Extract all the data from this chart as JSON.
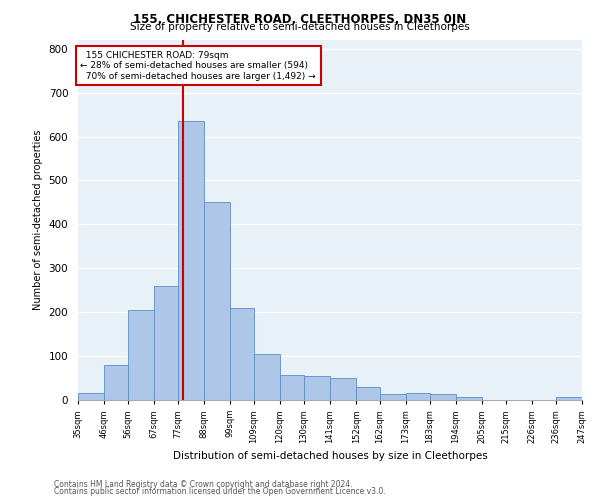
{
  "title1": "155, CHICHESTER ROAD, CLEETHORPES, DN35 0JN",
  "title2": "Size of property relative to semi-detached houses in Cleethorpes",
  "xlabel": "Distribution of semi-detached houses by size in Cleethorpes",
  "ylabel": "Number of semi-detached properties",
  "bin_labels": [
    "35sqm",
    "46sqm",
    "56sqm",
    "67sqm",
    "77sqm",
    "88sqm",
    "99sqm",
    "109sqm",
    "120sqm",
    "130sqm",
    "141sqm",
    "152sqm",
    "162sqm",
    "173sqm",
    "183sqm",
    "194sqm",
    "205sqm",
    "215sqm",
    "226sqm",
    "236sqm",
    "247sqm"
  ],
  "bin_edges": [
    35,
    46,
    56,
    67,
    77,
    88,
    99,
    109,
    120,
    130,
    141,
    152,
    162,
    173,
    183,
    194,
    205,
    215,
    226,
    236,
    247
  ],
  "bar_heights": [
    15,
    80,
    205,
    260,
    635,
    450,
    210,
    105,
    58,
    55,
    50,
    30,
    13,
    15,
    13,
    7,
    0,
    0,
    0,
    7
  ],
  "bar_color": "#aec6e8",
  "bar_edge_color": "#5a8fc2",
  "property_size": 79,
  "property_label": "155 CHICHESTER ROAD: 79sqm",
  "pct_smaller": 28,
  "n_smaller": 594,
  "pct_larger": 70,
  "n_larger": 1492,
  "vline_color": "#cc0000",
  "bg_color": "#e8f0f8",
  "grid_color": "#ffffff",
  "footer1": "Contains HM Land Registry data © Crown copyright and database right 2024.",
  "footer2": "Contains public sector information licensed under the Open Government Licence v3.0.",
  "ylim": [
    0,
    820
  ],
  "yticks": [
    0,
    100,
    200,
    300,
    400,
    500,
    600,
    700,
    800
  ]
}
